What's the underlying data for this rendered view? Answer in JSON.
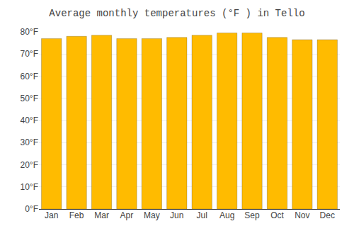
{
  "chart_data": {
    "type": "bar",
    "title": "Average monthly temperatures (°F ) in Tello",
    "categories": [
      "Jan",
      "Feb",
      "Mar",
      "Apr",
      "May",
      "Jun",
      "Jul",
      "Aug",
      "Sep",
      "Oct",
      "Nov",
      "Dec"
    ],
    "values": [
      77.0,
      78.0,
      78.5,
      77.0,
      77.0,
      77.5,
      78.5,
      79.5,
      79.5,
      77.5,
      76.5,
      76.5
    ],
    "color": "#FFBB00",
    "ylim": [
      0,
      80
    ],
    "yticks": [
      {
        "value": 0,
        "label": "0°F"
      },
      {
        "value": 10,
        "label": "10°F"
      },
      {
        "value": 20,
        "label": "20°F"
      },
      {
        "value": 30,
        "label": "30°F"
      },
      {
        "value": 40,
        "label": "40°F"
      },
      {
        "value": 50,
        "label": "50°F"
      },
      {
        "value": 60,
        "label": "60°F"
      },
      {
        "value": 70,
        "label": "70°F"
      },
      {
        "value": 80,
        "label": "80°F"
      }
    ],
    "grid": true
  }
}
